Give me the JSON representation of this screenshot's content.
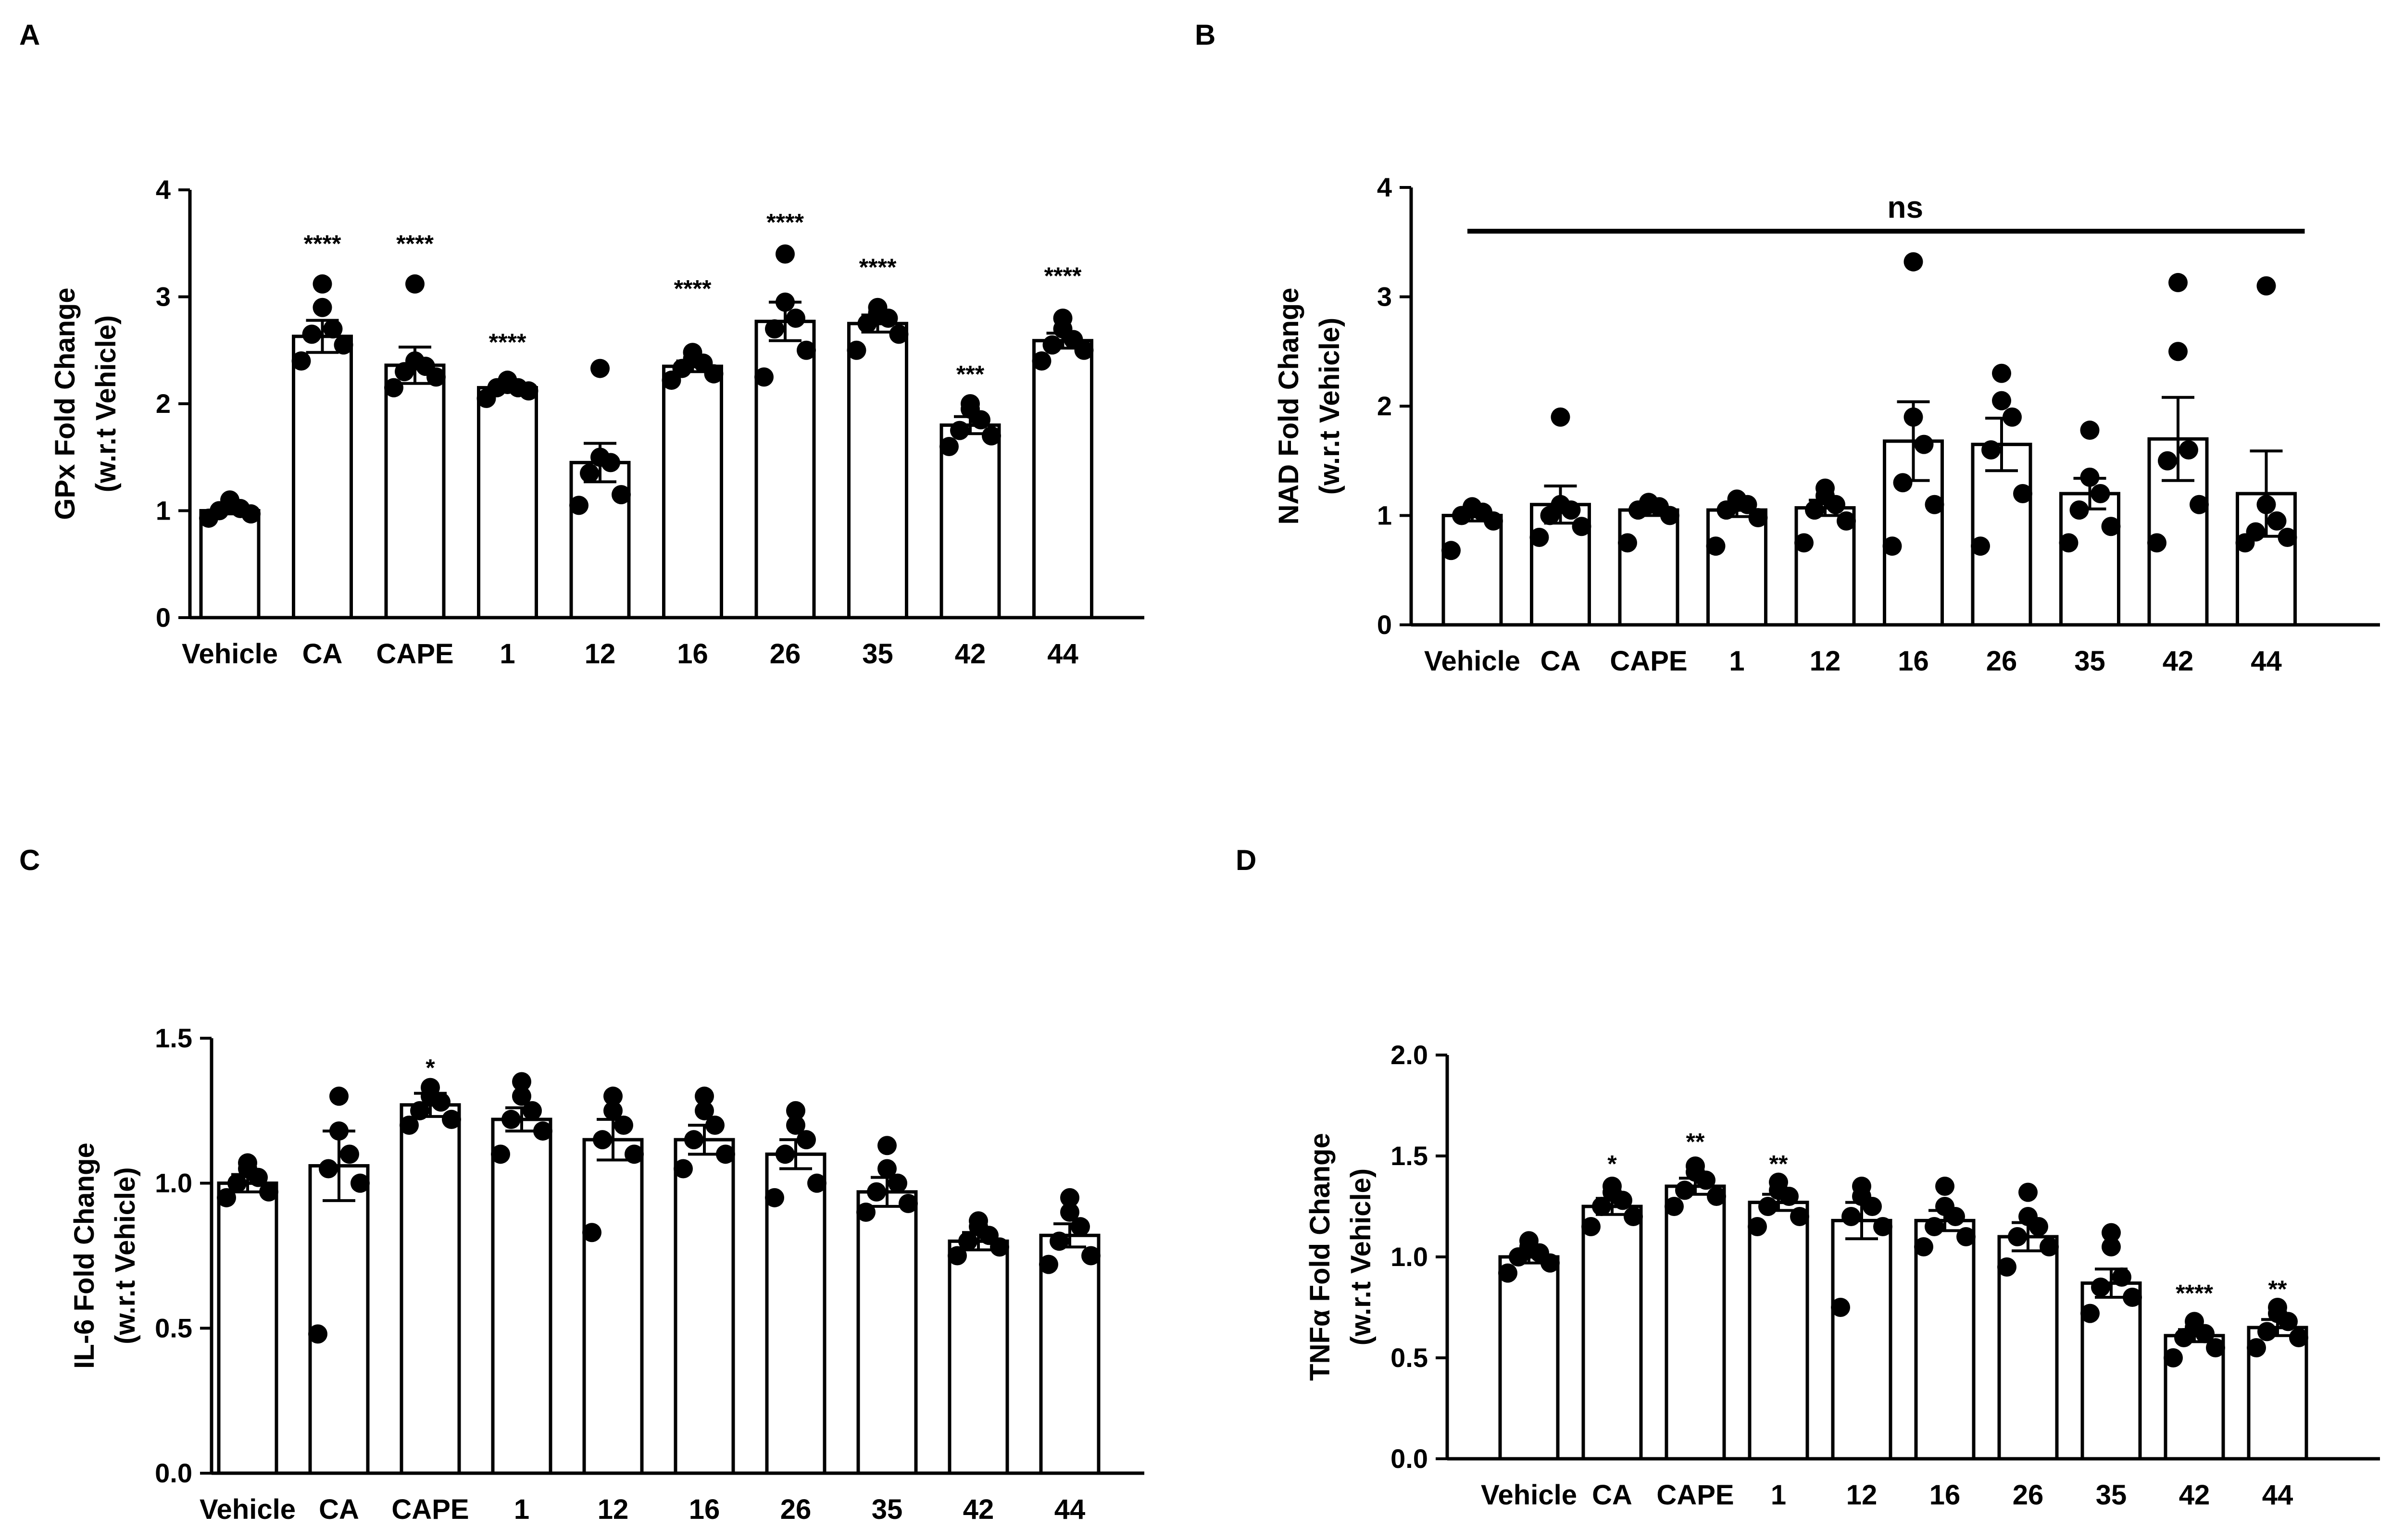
{
  "colors": {
    "ink": "#000000",
    "bar_fill": "#ffffff",
    "background": "#ffffff"
  },
  "chart_data": [
    {
      "panel": "A",
      "type": "bar",
      "ylabel_line1": "GPx Fold Change",
      "ylabel_line2": "(w.r.t Vehicle)",
      "ylim": [
        0,
        4
      ],
      "yticks": [
        0,
        1,
        2,
        3,
        4
      ],
      "ytick_labels": [
        "0",
        "1",
        "2",
        "3",
        "4"
      ],
      "categories": [
        "Vehicle",
        "CA",
        "CAPE",
        "1",
        "12",
        "16",
        "26",
        "35",
        "42",
        "44"
      ],
      "values": [
        1.0,
        2.63,
        2.36,
        2.15,
        1.45,
        2.35,
        2.77,
        2.75,
        1.8,
        2.59
      ],
      "sem": [
        0.03,
        0.15,
        0.17,
        0.04,
        0.18,
        0.05,
        0.18,
        0.08,
        0.08,
        0.07
      ],
      "points": [
        [
          0.93,
          0.97,
          1.0,
          1.02,
          1.05,
          1.1
        ],
        [
          2.4,
          2.55,
          2.65,
          2.7,
          2.9,
          3.12
        ],
        [
          2.15,
          2.25,
          2.3,
          2.35,
          2.4,
          3.12
        ],
        [
          2.05,
          2.12,
          2.15,
          2.15,
          2.18,
          2.22
        ],
        [
          1.05,
          1.15,
          1.35,
          1.45,
          1.5,
          2.33
        ],
        [
          2.22,
          2.28,
          2.33,
          2.38,
          2.42,
          2.48
        ],
        [
          2.25,
          2.5,
          2.7,
          2.8,
          2.95,
          3.4
        ],
        [
          2.5,
          2.65,
          2.75,
          2.8,
          2.85,
          2.9
        ],
        [
          1.6,
          1.7,
          1.75,
          1.85,
          1.95,
          2.0
        ],
        [
          2.4,
          2.5,
          2.55,
          2.6,
          2.7,
          2.8
        ]
      ],
      "significance": [
        "",
        "****",
        "****",
        "****",
        "",
        "****",
        "****",
        "****",
        "***",
        "****"
      ],
      "sig_y": [
        0,
        3.42,
        3.42,
        2.5,
        0,
        3.0,
        3.62,
        3.2,
        2.2,
        3.12
      ],
      "ns_label": ""
    },
    {
      "panel": "B",
      "type": "bar",
      "ylabel_line1": "NAD Fold Change",
      "ylabel_line2": "(w.r.t Vehicle)",
      "ylim": [
        0,
        4
      ],
      "yticks": [
        0,
        1,
        2,
        3,
        4
      ],
      "ytick_labels": [
        "0",
        "1",
        "2",
        "3",
        "4"
      ],
      "categories": [
        "Vehicle",
        "CA",
        "CAPE",
        "1",
        "12",
        "16",
        "26",
        "35",
        "42",
        "44"
      ],
      "values": [
        1.0,
        1.1,
        1.05,
        1.05,
        1.07,
        1.68,
        1.65,
        1.2,
        1.7,
        1.2
      ],
      "sem": [
        0.05,
        0.17,
        0.05,
        0.06,
        0.07,
        0.36,
        0.24,
        0.14,
        0.38,
        0.39
      ],
      "points": [
        [
          0.68,
          0.95,
          1.0,
          1.03,
          1.06,
          1.08
        ],
        [
          0.8,
          0.9,
          1.0,
          1.05,
          1.1,
          1.9
        ],
        [
          0.75,
          1.0,
          1.05,
          1.08,
          1.1,
          1.12
        ],
        [
          0.72,
          0.98,
          1.05,
          1.1,
          1.12,
          1.15
        ],
        [
          0.75,
          0.95,
          1.05,
          1.1,
          1.18,
          1.25
        ],
        [
          0.72,
          1.1,
          1.3,
          1.65,
          1.9,
          3.32
        ],
        [
          0.72,
          1.2,
          1.6,
          1.9,
          2.05,
          2.3
        ],
        [
          0.75,
          0.9,
          1.05,
          1.2,
          1.35,
          1.78
        ],
        [
          0.75,
          1.1,
          1.5,
          1.6,
          2.5,
          3.13
        ],
        [
          0.75,
          0.8,
          0.85,
          0.95,
          1.1,
          3.1
        ]
      ],
      "significance": [
        "",
        "",
        "",
        "",
        "",
        "",
        "",
        "",
        "",
        ""
      ],
      "sig_y": [
        0,
        0,
        0,
        0,
        0,
        0,
        0,
        0,
        0,
        0
      ],
      "ns_label": "ns",
      "ns_line_y": 3.6
    },
    {
      "panel": "C",
      "type": "bar",
      "ylabel_line1": "IL-6 Fold Change",
      "ylabel_line2": "(w.r.t Vehicle)",
      "ylim": [
        0,
        1.5
      ],
      "yticks": [
        0,
        0.5,
        1.0,
        1.5
      ],
      "ytick_labels": [
        "0.0",
        "0.5",
        "1.0",
        "1.5"
      ],
      "categories": [
        "Vehicle",
        "CA",
        "CAPE",
        "1",
        "12",
        "16",
        "26",
        "35",
        "42",
        "44"
      ],
      "values": [
        1.0,
        1.06,
        1.27,
        1.22,
        1.15,
        1.15,
        1.1,
        0.97,
        0.8,
        0.82
      ],
      "sem": [
        0.03,
        0.12,
        0.04,
        0.04,
        0.07,
        0.05,
        0.05,
        0.05,
        0.03,
        0.04
      ],
      "points": [
        [
          0.95,
          0.97,
          1.0,
          1.02,
          1.05,
          1.07
        ],
        [
          0.48,
          1.0,
          1.05,
          1.1,
          1.18,
          1.3
        ],
        [
          1.2,
          1.22,
          1.25,
          1.28,
          1.3,
          1.33
        ],
        [
          1.1,
          1.18,
          1.22,
          1.25,
          1.3,
          1.35
        ],
        [
          0.83,
          1.1,
          1.15,
          1.2,
          1.25,
          1.3
        ],
        [
          1.05,
          1.1,
          1.15,
          1.2,
          1.25,
          1.3
        ],
        [
          0.95,
          1.0,
          1.1,
          1.15,
          1.2,
          1.25
        ],
        [
          0.9,
          0.93,
          0.97,
          1.0,
          1.05,
          1.13
        ],
        [
          0.75,
          0.78,
          0.8,
          0.82,
          0.85,
          0.87
        ],
        [
          0.72,
          0.75,
          0.8,
          0.85,
          0.9,
          0.95
        ]
      ],
      "significance": [
        "",
        "",
        "*",
        "",
        "",
        "",
        "",
        "",
        "",
        ""
      ],
      "sig_y": [
        0,
        0,
        1.37,
        0,
        0,
        0,
        0,
        0,
        0,
        0
      ],
      "ns_label": ""
    },
    {
      "panel": "D",
      "type": "bar",
      "ylabel_line1": "TNFα Fold Change",
      "ylabel_line2": "(w.r.t Vehicle)",
      "ylim": [
        0,
        2.0
      ],
      "yticks": [
        0,
        0.5,
        1.0,
        1.5,
        2.0
      ],
      "ytick_labels": [
        "0.0",
        "0.5",
        "1.0",
        "1.5",
        "2.0"
      ],
      "categories": [
        "Vehicle",
        "CA",
        "CAPE",
        "1",
        "12",
        "16",
        "26",
        "35",
        "42",
        "44"
      ],
      "values": [
        1.0,
        1.25,
        1.35,
        1.27,
        1.18,
        1.18,
        1.1,
        0.87,
        0.61,
        0.65
      ],
      "sem": [
        0.03,
        0.04,
        0.04,
        0.04,
        0.09,
        0.05,
        0.07,
        0.07,
        0.03,
        0.04
      ],
      "points": [
        [
          0.92,
          0.97,
          1.0,
          1.02,
          1.05,
          1.08
        ],
        [
          1.15,
          1.2,
          1.25,
          1.28,
          1.32,
          1.35
        ],
        [
          1.25,
          1.3,
          1.33,
          1.38,
          1.42,
          1.45
        ],
        [
          1.15,
          1.2,
          1.25,
          1.3,
          1.33,
          1.37
        ],
        [
          0.75,
          1.15,
          1.2,
          1.25,
          1.3,
          1.35
        ],
        [
          1.05,
          1.1,
          1.15,
          1.2,
          1.25,
          1.35
        ],
        [
          0.95,
          1.05,
          1.1,
          1.15,
          1.2,
          1.32
        ],
        [
          0.72,
          0.8,
          0.85,
          0.9,
          1.05,
          1.12
        ],
        [
          0.5,
          0.55,
          0.6,
          0.62,
          0.65,
          0.68
        ],
        [
          0.55,
          0.6,
          0.63,
          0.68,
          0.72,
          0.75
        ]
      ],
      "significance": [
        "",
        "*",
        "**",
        "**",
        "",
        "",
        "",
        "",
        "****",
        "**"
      ],
      "sig_y": [
        0,
        1.42,
        1.53,
        1.42,
        0,
        0,
        0,
        0,
        0.78,
        0.8
      ],
      "ns_label": ""
    }
  ]
}
